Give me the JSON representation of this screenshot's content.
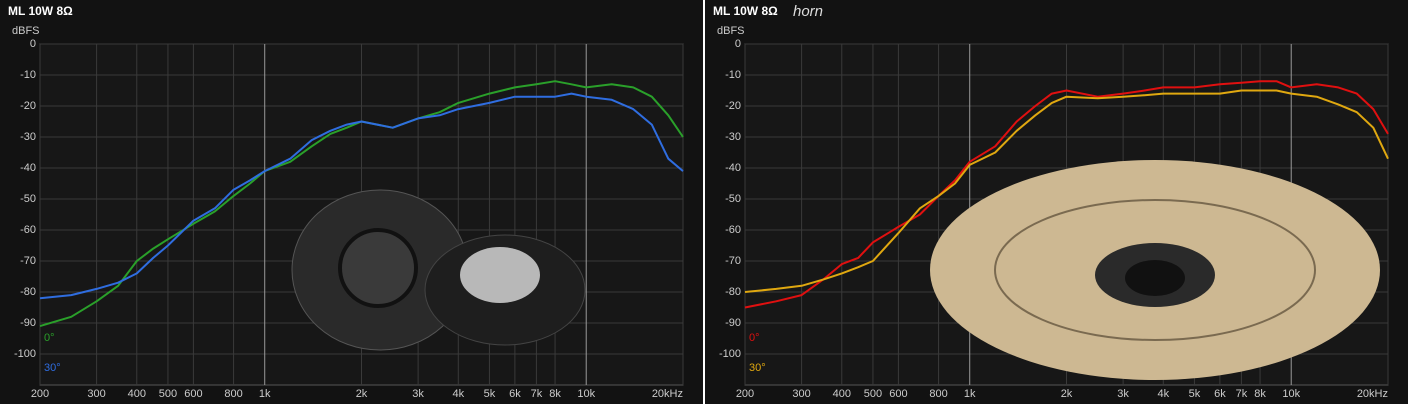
{
  "chart_data": [
    {
      "type": "line",
      "title": "ML 10W 8Ω",
      "ylabel": "dBFS",
      "xscale": "log",
      "grid": true,
      "xlim": [
        200,
        20000
      ],
      "ylim": [
        -110,
        0
      ],
      "xticks": [
        200,
        300,
        400,
        500,
        600,
        800,
        {
          "value": 1000,
          "label": "1k"
        },
        {
          "value": 2000,
          "label": "2k"
        },
        {
          "value": 3000,
          "label": "3k"
        },
        {
          "value": 4000,
          "label": "4k"
        },
        {
          "value": 5000,
          "label": "5k"
        },
        {
          "value": 6000,
          "label": "6k"
        },
        {
          "value": 7000,
          "label": "7k"
        },
        {
          "value": 8000,
          "label": "8k"
        },
        {
          "value": 10000,
          "label": "10k"
        },
        {
          "value": 20000,
          "label": "20kHz"
        }
      ],
      "yticks": [
        0,
        -10,
        -20,
        -30,
        -40,
        -50,
        -60,
        -70,
        -80,
        -90,
        -100
      ],
      "x": [
        200,
        250,
        300,
        350,
        400,
        450,
        500,
        600,
        700,
        800,
        900,
        1000,
        1200,
        1400,
        1600,
        1800,
        2000,
        2500,
        3000,
        3500,
        4000,
        5000,
        6000,
        7000,
        8000,
        9000,
        10000,
        12000,
        14000,
        16000,
        18000,
        20000
      ],
      "series": [
        {
          "name": "0°",
          "color": "#2aa02a",
          "values": [
            -91,
            -88,
            -83,
            -78,
            -70,
            -66,
            -63,
            -58,
            -54,
            -49,
            -45,
            -41,
            -38,
            -33,
            -29,
            -27,
            -25,
            -27,
            -24,
            -22,
            -19,
            -16,
            -14,
            -13,
            -12,
            -13,
            -14,
            -13,
            -14,
            -17,
            -23,
            -30
          ]
        },
        {
          "name": "30°",
          "color": "#2f6de0",
          "values": [
            -82,
            -81,
            -79,
            -77,
            -74,
            -69,
            -65,
            -57,
            -53,
            -47,
            -44,
            -41,
            -37,
            -31,
            -28,
            -26,
            -25,
            -27,
            -24,
            -23,
            -21,
            -19,
            -17,
            -17,
            -17,
            -16,
            -17,
            -18,
            -21,
            -26,
            -37,
            -41
          ]
        }
      ]
    },
    {
      "type": "line",
      "title": "ML 10W 8Ω",
      "subtitle": "horn",
      "ylabel": "dBFS",
      "xscale": "log",
      "grid": true,
      "xlim": [
        200,
        20000
      ],
      "ylim": [
        -110,
        0
      ],
      "xticks": [
        200,
        300,
        400,
        500,
        600,
        800,
        {
          "value": 1000,
          "label": "1k"
        },
        {
          "value": 2000,
          "label": "2k"
        },
        {
          "value": 3000,
          "label": "3k"
        },
        {
          "value": 4000,
          "label": "4k"
        },
        {
          "value": 5000,
          "label": "5k"
        },
        {
          "value": 6000,
          "label": "6k"
        },
        {
          "value": 7000,
          "label": "7k"
        },
        {
          "value": 8000,
          "label": "8k"
        },
        {
          "value": 10000,
          "label": "10k"
        },
        {
          "value": 20000,
          "label": "20kHz"
        }
      ],
      "yticks": [
        0,
        -10,
        -20,
        -30,
        -40,
        -50,
        -60,
        -70,
        -80,
        -90,
        -100
      ],
      "x": [
        200,
        250,
        300,
        350,
        400,
        450,
        500,
        600,
        700,
        800,
        900,
        1000,
        1200,
        1400,
        1600,
        1800,
        2000,
        2500,
        3000,
        3500,
        4000,
        5000,
        6000,
        7000,
        8000,
        9000,
        10000,
        12000,
        14000,
        16000,
        18000,
        20000
      ],
      "series": [
        {
          "name": "0°",
          "color": "#e01010",
          "values": [
            -85,
            -83,
            -81,
            -76,
            -71,
            -69,
            -64,
            -59,
            -55,
            -49,
            -44,
            -38,
            -33,
            -25,
            -20,
            -16,
            -15,
            -17,
            -16,
            -15,
            -14,
            -14,
            -13,
            -12.5,
            -12,
            -12,
            -14,
            -13,
            -14,
            -16,
            -21,
            -29
          ]
        },
        {
          "name": "30°",
          "color": "#e0a810",
          "values": [
            -80,
            -79,
            -78,
            -76,
            -74,
            -72,
            -70,
            -61,
            -53,
            -49,
            -45,
            -39,
            -35,
            -28,
            -23,
            -19,
            -17,
            -17.5,
            -17,
            -16.5,
            -16,
            -16,
            -16,
            -15,
            -15,
            -15,
            -16,
            -17,
            -19.5,
            -22,
            -27,
            -37
          ]
        }
      ]
    }
  ]
}
